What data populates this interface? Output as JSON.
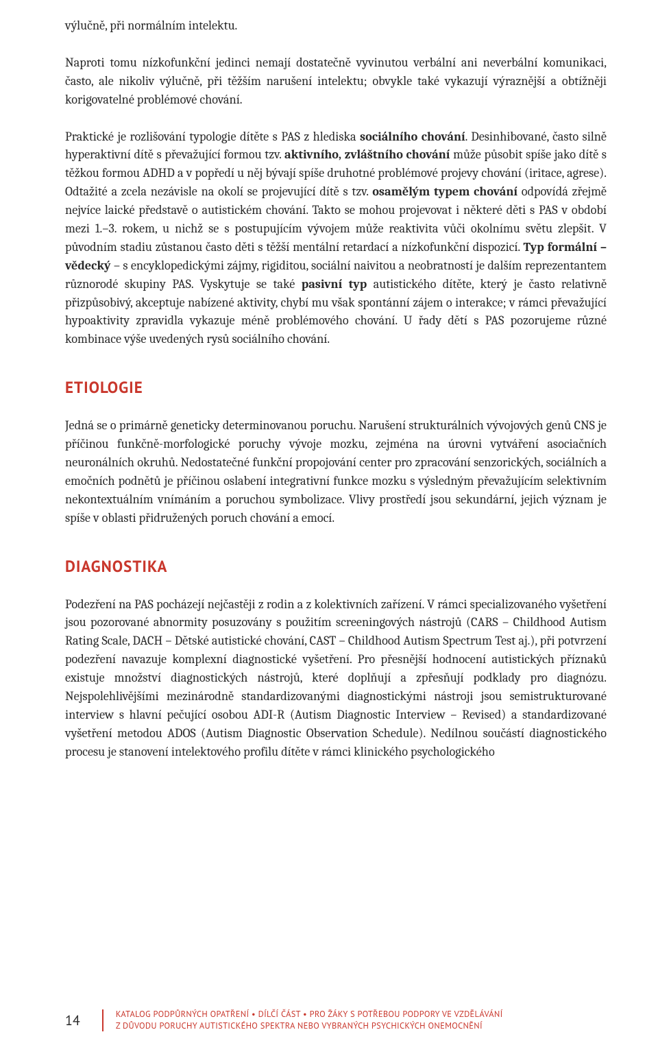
{
  "paragraphs": {
    "p1": "výlučně, při normálním intelektu.",
    "p2_a": "Naproti tomu nízkofunkční jedinci nemají dostatečně vyvinutou verbální ani neverbální komunikaci, často, ale nikoliv výlučně, při těžším narušení intelektu; obvykle také vykazují výraznější a obtížněji korigovatelné problémové chování.",
    "p3_a": "Praktické je rozlišování typologie dítěte s PAS z hlediska ",
    "p3_b": "sociálního chování",
    "p3_c": ". Desinhibované, často silně hyperaktivní dítě s převažující formou tzv. ",
    "p3_d": "aktivního, zvláštního chování",
    "p3_e": " může působit spíše jako dítě s těžkou formou ADHD a v popředí u něj bývají spíše druhotné problémové projevy chování (iritace, agrese). Odtažité a zcela nezávisle na okolí se projevující dítě s tzv. ",
    "p3_f": "osamělým typem chování",
    "p3_g": " odpovídá zřejmě nejvíce laické představě o autistickém chování. Takto se mohou projevovat i některé děti s PAS v období mezi 1.–3. rokem, u nichž se s postupujícím vývojem může reaktivita vůči okolnímu světu zlepšit. V původním stadiu zůstanou často děti s těžší mentální retardací a nízkofunkční dispozicí. ",
    "p3_h": "Typ formální – vědecký",
    "p3_i": " – s encyklopedickými zájmy, rigiditou, sociální naivitou a neobratností je dalším reprezentantem různorodé skupiny PAS. Vyskytuje se také ",
    "p3_j": "pasivní typ",
    "p3_k": " autistického dítěte, který je často relativně přizpůsobivý, akceptuje nabízené aktivity, chybí mu však spontánní zájem o interakce; v rámci převažující hypoaktivity zpravidla vykazuje méně problémového chování. U řady dětí s PAS pozorujeme různé kombinace výše uvedených rysů sociálního chování."
  },
  "sections": {
    "etiologie": {
      "heading": "ETIOLOGIE",
      "text": "Jedná se o primárně geneticky determinovanou poruchu. Narušení strukturálních vývojových genů CNS je příčinou funkčně-morfologické poruchy vývoje mozku, zejména na úrovni vytváření asociačních neuronálních okruhů. Nedostatečné funkční propojování center pro zpracování senzorických, sociálních a emočních podnětů je příčinou oslabení integrativní funkce mozku s výsledným převažujícím selektivním nekontextuálním vnímáním a poruchou symbolizace. Vlivy prostředí jsou sekundární, jejich význam je spíše v oblasti přidružených poruch chování a emocí."
    },
    "diagnostika": {
      "heading": "DIAGNOSTIKA",
      "text": "Podezření na PAS pocházejí nejčastěji z rodin a z kolektivních zařízení. V rámci specializovaného vyšetření jsou pozorované abnormity posuzovány s použitím screeningových nástrojů (CARS – Childhood Autism Rating Scale, DACH – Dětské autistické chování, CAST – Childhood Autism Spectrum Test aj.), při potvrzení podezření navazuje komplexní diagnostické vyšetření. Pro přesnější hodnocení autistických příznaků existuje množství diagnostických nástrojů, které doplňují a zpřesňují podklady pro diagnózu. Nejspolehlivějšími mezinárodně standardizovanými diagnostickými nástroji jsou semistrukturované interview s hlavní pečující osobou ADI-R (Autism Diagnostic Interview – Revised) a standardizované vyšetření metodou ADOS (Autism Diagnostic Observation Schedule). Nedílnou součástí diagnostického procesu je stanovení intelektového profilu dítěte v rámci klinického psychologického"
    }
  },
  "footer": {
    "page_number": "14",
    "line1": "KATALOG PODPŮRNÝCH OPATŘENÍ • DÍLČÍ ČÁST • PRO ŽÁKY S POTŘEBOU PODPORY VE VZDĚLÁVÁNÍ",
    "line2": "Z DŮVODU PORUCHY AUTISTICKÉHO SPEKTRA NEBO VYBRANÝCH PSYCHICKÝCH ONEMOCNĚNÍ"
  },
  "colors": {
    "accent": "#c9372c",
    "text": "#2a2a2a",
    "background": "#ffffff"
  }
}
